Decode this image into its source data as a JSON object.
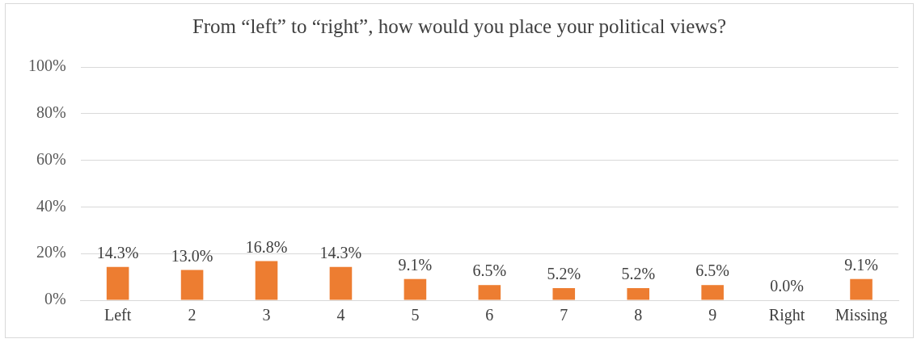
{
  "chart_data": {
    "type": "bar",
    "title": "From “left” to “right”, how would you place your political views?",
    "categories": [
      "Left",
      "2",
      "3",
      "4",
      "5",
      "6",
      "7",
      "8",
      "9",
      "Right",
      "Missing"
    ],
    "values": [
      14.3,
      13.0,
      16.8,
      14.3,
      9.1,
      6.5,
      5.2,
      5.2,
      6.5,
      0.0,
      9.1
    ],
    "value_labels": [
      "14.3%",
      "13.0%",
      "16.8%",
      "14.3%",
      "9.1%",
      "6.5%",
      "5.2%",
      "5.2%",
      "6.5%",
      "0.0%",
      "9.1%"
    ],
    "color": "#ed7d31",
    "ylim": [
      0,
      100
    ],
    "yticks": [
      {
        "value": 0,
        "label": "0%"
      },
      {
        "value": 20,
        "label": "20%"
      },
      {
        "value": 40,
        "label": "40%"
      },
      {
        "value": 60,
        "label": "60%"
      },
      {
        "value": 80,
        "label": "80%"
      },
      {
        "value": 100,
        "label": "100%"
      }
    ],
    "grid": "y",
    "legend": false
  }
}
